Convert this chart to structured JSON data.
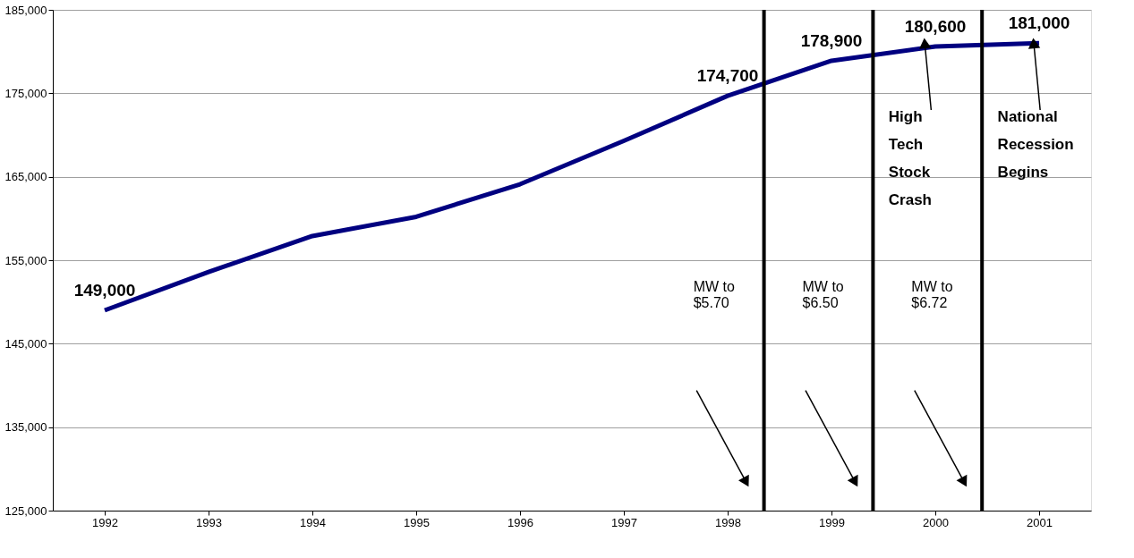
{
  "chart_data": {
    "type": "line",
    "x": [
      1992,
      1993,
      1994,
      1995,
      1996,
      1997,
      1998,
      1999,
      2000,
      2001
    ],
    "series": [
      {
        "color": "#000080",
        "values": [
          149000,
          153600,
          157900,
          160200,
          164100,
          169300,
          174700,
          178900,
          180600,
          181000
        ],
        "value_labels": [
          "149,000",
          null,
          null,
          null,
          null,
          null,
          "174,700",
          "178,900",
          "180,600",
          "181,000"
        ]
      }
    ],
    "xlim": [
      1991.5,
      2001.5
    ],
    "xticks": [
      1992,
      1993,
      1994,
      1995,
      1996,
      1997,
      1998,
      1999,
      2000,
      2001
    ],
    "ylim": [
      125000,
      185000
    ],
    "yticks": [
      {
        "value": 125000,
        "label": "125,000"
      },
      {
        "value": 135000,
        "label": "135,000"
      },
      {
        "value": 145000,
        "label": "145,000"
      },
      {
        "value": 155000,
        "label": "155,000"
      },
      {
        "value": 165000,
        "label": "165,000"
      },
      {
        "value": 175000,
        "label": "175,000"
      },
      {
        "value": 185000,
        "label": "185,000"
      }
    ],
    "grid": "y",
    "ref_lines": [
      {
        "axis": "x",
        "value": 1998.35,
        "label": "MW  to\n$5.70",
        "color": "#000000"
      },
      {
        "axis": "x",
        "value": 1999.4,
        "label": "MW to\n$6.50",
        "color": "#000000"
      },
      {
        "axis": "x",
        "value": 2000.45,
        "label": "MW to\n$6.72",
        "color": "#000000"
      }
    ],
    "annotations": [
      "High\nTech\nStock\nCrash",
      "National\nRecession\nBegins"
    ]
  }
}
